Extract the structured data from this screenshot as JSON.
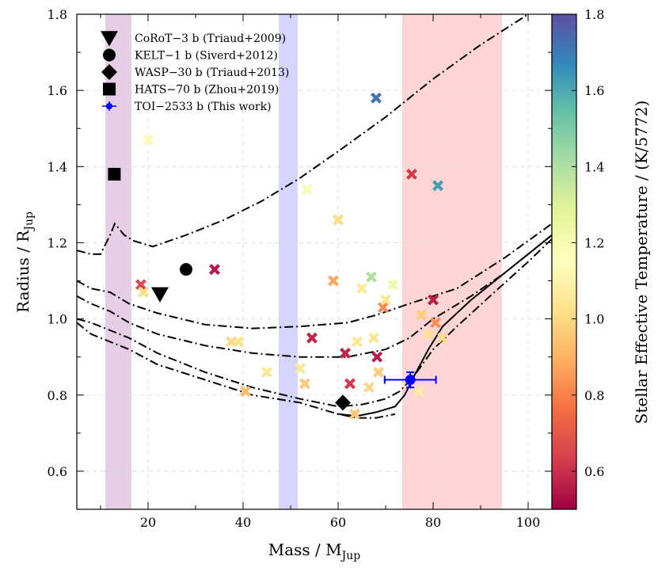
{
  "chart_data": {
    "type": "scatter",
    "title": "",
    "xlabel": "Mass / M",
    "xlabel_sub": "Jup",
    "ylabel": "Radius / R",
    "ylabel_sub": "Jup",
    "xlim": [
      5,
      105
    ],
    "ylim": [
      0.5,
      1.8
    ],
    "x_ticks": [
      20,
      40,
      60,
      80,
      100
    ],
    "x_tick_labels": [
      "20",
      "40",
      "60",
      "80",
      "100"
    ],
    "y_ticks": [
      0.6,
      0.8,
      1.0,
      1.2,
      1.4,
      1.6,
      1.8
    ],
    "y_tick_labels": [
      "0.6",
      "0.8",
      "1.0",
      "1.2",
      "1.4",
      "1.6",
      "1.8"
    ],
    "grid": true,
    "shaded_bands": [
      {
        "name": "deuterium-burning",
        "x0": 11,
        "x1": 16.5,
        "color": "#d4a6d4"
      },
      {
        "name": "brown-dwarf-mid",
        "x0": 47.5,
        "x1": 51.5,
        "color": "#b3b3ff"
      },
      {
        "name": "hydrogen-burning",
        "x0": 73.5,
        "x1": 94.5,
        "color": "#ffb3b3"
      }
    ],
    "isochrones": [
      {
        "name": "young-isochrone",
        "style": "dashdot",
        "points": [
          [
            5,
            1.18
          ],
          [
            8,
            1.17
          ],
          [
            10,
            1.17
          ],
          [
            12,
            1.22
          ],
          [
            13,
            1.25
          ],
          [
            15,
            1.22
          ],
          [
            17,
            1.205
          ],
          [
            21,
            1.19
          ],
          [
            28,
            1.22
          ],
          [
            36,
            1.26
          ],
          [
            44,
            1.31
          ],
          [
            52,
            1.37
          ],
          [
            60,
            1.44
          ],
          [
            70,
            1.53
          ],
          [
            80,
            1.63
          ],
          [
            90,
            1.72
          ],
          [
            100,
            1.8
          ]
        ]
      },
      {
        "name": "mid-isochrone-1",
        "style": "dashdot",
        "points": [
          [
            5,
            1.1
          ],
          [
            8,
            1.08
          ],
          [
            12,
            1.07
          ],
          [
            16,
            1.04
          ],
          [
            22,
            1.015
          ],
          [
            32,
            0.985
          ],
          [
            42,
            0.975
          ],
          [
            52,
            0.98
          ],
          [
            62,
            0.99
          ],
          [
            68,
            1.01
          ],
          [
            75,
            1.04
          ],
          [
            85,
            1.08
          ],
          [
            95,
            1.16
          ],
          [
            105,
            1.25
          ]
        ]
      },
      {
        "name": "mid-isochrone-2",
        "style": "dashdot",
        "points": [
          [
            5,
            1.06
          ],
          [
            8,
            1.04
          ],
          [
            12,
            1.02
          ],
          [
            16,
            0.99
          ],
          [
            22,
            0.96
          ],
          [
            32,
            0.93
          ],
          [
            42,
            0.91
          ],
          [
            52,
            0.9
          ],
          [
            62,
            0.9
          ],
          [
            70,
            0.92
          ],
          [
            75,
            0.95
          ],
          [
            80,
            1.0
          ],
          [
            88,
            1.06
          ],
          [
            95,
            1.12
          ],
          [
            105,
            1.22
          ]
        ]
      },
      {
        "name": "old-isochrone",
        "style": "dashdot",
        "points": [
          [
            5,
            1.0
          ],
          [
            8,
            0.99
          ],
          [
            12,
            0.97
          ],
          [
            16,
            0.95
          ],
          [
            22,
            0.91
          ],
          [
            32,
            0.86
          ],
          [
            42,
            0.82
          ],
          [
            52,
            0.79
          ],
          [
            60,
            0.77
          ],
          [
            65,
            0.775
          ],
          [
            70,
            0.79
          ],
          [
            73,
            0.81
          ],
          [
            76,
            0.85
          ],
          [
            80,
            0.92
          ],
          [
            85,
            0.98
          ],
          [
            92,
            1.06
          ],
          [
            100,
            1.15
          ],
          [
            105,
            1.21
          ]
        ]
      },
      {
        "name": "hydrogen-burning-track",
        "style": "solid",
        "points": [
          [
            60,
            0.75
          ],
          [
            64,
            0.745
          ],
          [
            68,
            0.755
          ],
          [
            72,
            0.77
          ],
          [
            74,
            0.8
          ],
          [
            76,
            0.85
          ],
          [
            79,
            0.92
          ],
          [
            82,
            0.98
          ],
          [
            88,
            1.05
          ],
          [
            95,
            1.12
          ],
          [
            105,
            1.22
          ]
        ]
      },
      {
        "name": "oldest-isochrone",
        "style": "dashdot",
        "points": [
          [
            5,
            0.99
          ],
          [
            8,
            0.96
          ],
          [
            12,
            0.94
          ],
          [
            16,
            0.92
          ],
          [
            22,
            0.88
          ],
          [
            32,
            0.84
          ],
          [
            42,
            0.8
          ],
          [
            52,
            0.78
          ],
          [
            60,
            0.75
          ],
          [
            64,
            0.74
          ],
          [
            68,
            0.74
          ],
          [
            72,
            0.75
          ]
        ]
      }
    ],
    "colorbar": {
      "label": "Stellar Effective Temperature  /  (K/5772)",
      "range": [
        0.5,
        1.8
      ],
      "ticks": [
        0.6,
        0.8,
        1.0,
        1.2,
        1.4,
        1.6,
        1.8
      ],
      "tick_labels": [
        "0.6",
        "0.8",
        "1.0",
        "1.2",
        "1.4",
        "1.6",
        "1.8"
      ]
    },
    "colormap_stops": [
      "#9e0142",
      "#d53e4f",
      "#f46d43",
      "#fdae61",
      "#fee08b",
      "#ffffbf",
      "#e6f598",
      "#abdda4",
      "#66c2a5",
      "#3288bd",
      "#5e4fa2"
    ],
    "population": [
      {
        "x": 18.5,
        "y": 1.09,
        "teff": 0.66
      },
      {
        "x": 19,
        "y": 1.07,
        "teff": 1.02
      },
      {
        "x": 20,
        "y": 1.47,
        "teff": 1.12
      },
      {
        "x": 34,
        "y": 1.13,
        "teff": 0.55
      },
      {
        "x": 37.5,
        "y": 0.94,
        "teff": 1.0
      },
      {
        "x": 39,
        "y": 0.94,
        "teff": 1.02
      },
      {
        "x": 40.5,
        "y": 0.81,
        "teff": 0.92
      },
      {
        "x": 45,
        "y": 0.86,
        "teff": 1.04
      },
      {
        "x": 52,
        "y": 0.87,
        "teff": 1.05
      },
      {
        "x": 53,
        "y": 0.83,
        "teff": 0.96
      },
      {
        "x": 53.5,
        "y": 1.34,
        "teff": 1.2
      },
      {
        "x": 54.5,
        "y": 0.95,
        "teff": 0.58
      },
      {
        "x": 59,
        "y": 1.1,
        "teff": 0.88
      },
      {
        "x": 60,
        "y": 1.26,
        "teff": 1.01
      },
      {
        "x": 61.5,
        "y": 0.91,
        "teff": 0.58
      },
      {
        "x": 62.5,
        "y": 0.83,
        "teff": 0.62
      },
      {
        "x": 63.5,
        "y": 0.75,
        "teff": 0.95
      },
      {
        "x": 64,
        "y": 0.94,
        "teff": 1.04
      },
      {
        "x": 65,
        "y": 1.08,
        "teff": 1.06
      },
      {
        "x": 66.5,
        "y": 0.82,
        "teff": 1.0
      },
      {
        "x": 67,
        "y": 1.11,
        "teff": 1.4
      },
      {
        "x": 67.5,
        "y": 0.95,
        "teff": 1.04
      },
      {
        "x": 68,
        "y": 1.58,
        "teff": 1.72
      },
      {
        "x": 68.2,
        "y": 0.9,
        "teff": 0.56
      },
      {
        "x": 68.5,
        "y": 0.86,
        "teff": 0.97
      },
      {
        "x": 69.5,
        "y": 1.03,
        "teff": 0.82
      },
      {
        "x": 70,
        "y": 1.05,
        "teff": 1.05
      },
      {
        "x": 71.5,
        "y": 1.09,
        "teff": 1.22
      },
      {
        "x": 75.5,
        "y": 1.38,
        "teff": 0.62
      },
      {
        "x": 77,
        "y": 0.81,
        "teff": 1.08
      },
      {
        "x": 77.5,
        "y": 1.01,
        "teff": 0.97
      },
      {
        "x": 79,
        "y": 0.96,
        "teff": 1.03
      },
      {
        "x": 80,
        "y": 1.05,
        "teff": 0.56
      },
      {
        "x": 80.5,
        "y": 0.99,
        "teff": 0.82
      },
      {
        "x": 81,
        "y": 1.35,
        "teff": 1.62
      },
      {
        "x": 82,
        "y": 0.95,
        "teff": 1.01
      }
    ],
    "legend": {
      "position": "top-left",
      "entries": [
        {
          "marker": "triangle-down",
          "label": "CoRoT−3 b (Triaud+2009)"
        },
        {
          "marker": "circle",
          "label": "KELT−1 b (Siverd+2012)"
        },
        {
          "marker": "diamond",
          "label": "WASP−30 b (Triaud+2013)"
        },
        {
          "marker": "square",
          "label": "HATS−70 b (Zhou+2019)"
        },
        {
          "marker": "errorbar-circle",
          "label": "TOI−2533 b (This work)"
        }
      ]
    },
    "highlighted_objects": [
      {
        "name": "CoRoT−3 b",
        "marker": "triangle-down",
        "x": 22.5,
        "y": 1.065
      },
      {
        "name": "KELT−1 b",
        "marker": "circle",
        "x": 28,
        "y": 1.13
      },
      {
        "name": "WASP−30 b",
        "marker": "diamond",
        "x": 61,
        "y": 0.78
      },
      {
        "name": "HATS−70 b",
        "marker": "square",
        "x": 12.9,
        "y": 1.38
      },
      {
        "name": "TOI−2533 b",
        "marker": "errorbar-circle",
        "x": 75.2,
        "y": 0.84,
        "xerr": 5.4,
        "yerr": 0.02,
        "color": "#0000ff"
      }
    ]
  }
}
